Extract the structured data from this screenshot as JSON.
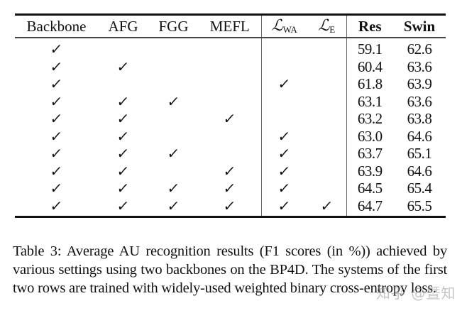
{
  "table": {
    "columns": [
      {
        "key": "backbone",
        "label": "Backbone",
        "bold": false
      },
      {
        "key": "afg",
        "label": "AFG",
        "bold": false
      },
      {
        "key": "fgg",
        "label": "FGG",
        "bold": false
      },
      {
        "key": "mefl",
        "label": "MEFL",
        "bold": false
      },
      {
        "key": "l_wa",
        "label": "ℒ",
        "subscript": "WA",
        "bold": false
      },
      {
        "key": "l_e",
        "label": "ℒ",
        "subscript": "E",
        "bold": false
      },
      {
        "key": "res",
        "label": "Res",
        "bold": true
      },
      {
        "key": "swin",
        "label": "Swin",
        "bold": true
      }
    ],
    "check_symbol": "✓",
    "rows": [
      {
        "backbone": true,
        "afg": false,
        "fgg": false,
        "mefl": false,
        "l_wa": false,
        "l_e": false,
        "res": "59.1",
        "swin": "62.6"
      },
      {
        "backbone": true,
        "afg": true,
        "fgg": false,
        "mefl": false,
        "l_wa": false,
        "l_e": false,
        "res": "60.4",
        "swin": "63.6"
      },
      {
        "backbone": true,
        "afg": false,
        "fgg": false,
        "mefl": false,
        "l_wa": true,
        "l_e": false,
        "res": "61.8",
        "swin": "63.9"
      },
      {
        "backbone": true,
        "afg": true,
        "fgg": true,
        "mefl": false,
        "l_wa": false,
        "l_e": false,
        "res": "63.1",
        "swin": "63.6"
      },
      {
        "backbone": true,
        "afg": true,
        "fgg": false,
        "mefl": true,
        "l_wa": false,
        "l_e": false,
        "res": "63.2",
        "swin": "63.8"
      },
      {
        "backbone": true,
        "afg": true,
        "fgg": false,
        "mefl": false,
        "l_wa": true,
        "l_e": false,
        "res": "63.0",
        "swin": "64.6"
      },
      {
        "backbone": true,
        "afg": true,
        "fgg": true,
        "mefl": false,
        "l_wa": true,
        "l_e": false,
        "res": "63.7",
        "swin": "65.1"
      },
      {
        "backbone": true,
        "afg": true,
        "fgg": false,
        "mefl": true,
        "l_wa": true,
        "l_e": false,
        "res": "63.9",
        "swin": "64.6"
      },
      {
        "backbone": true,
        "afg": true,
        "fgg": true,
        "mefl": true,
        "l_wa": true,
        "l_e": false,
        "res": "64.5",
        "swin": "65.4"
      },
      {
        "backbone": true,
        "afg": true,
        "fgg": true,
        "mefl": true,
        "l_wa": true,
        "l_e": true,
        "res": "64.7",
        "swin": "65.5"
      }
    ]
  },
  "caption": "Table 3: Average AU recognition results (F1 scores (in %)) achieved by various settings using two backbones on the BP4D. The systems of the first two rows are trained with widely-used weighted binary cross-entropy loss.",
  "watermark": "知乎 @暨知"
}
